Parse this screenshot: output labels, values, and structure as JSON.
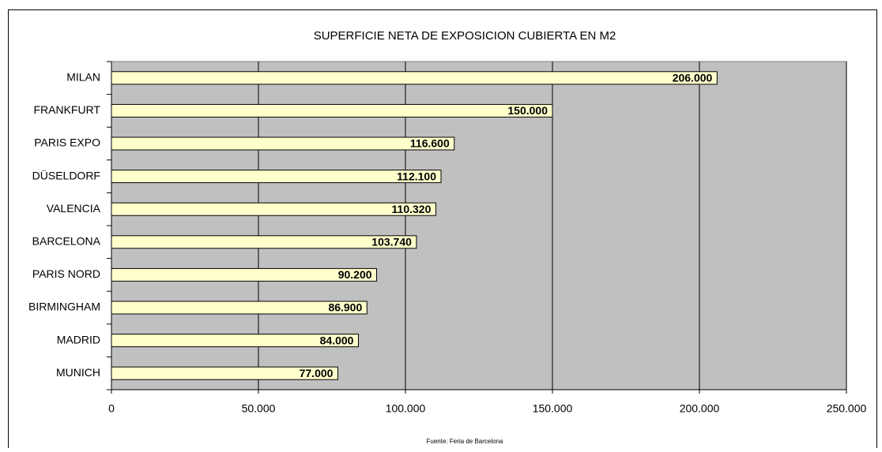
{
  "chart_data": {
    "type": "bar",
    "orientation": "horizontal",
    "title": "SUPERFICIE NETA DE EXPOSICION CUBIERTA EN M2",
    "note": "Fuente: Feria de Barcelona",
    "categories": [
      "MILAN",
      "FRANKFURT",
      "PARIS EXPO",
      "DÜSELDORF",
      "VALENCIA",
      "BARCELONA",
      "PARIS NORD",
      "BIRMINGHAM",
      "MADRID",
      "MUNICH"
    ],
    "values": [
      206000,
      150000,
      116600,
      112100,
      110320,
      103740,
      90200,
      86900,
      84000,
      77000
    ],
    "value_labels": [
      "206.000",
      "150.000",
      "116.600",
      "112.100",
      "110.320",
      "103.740",
      "90.200",
      "86.900",
      "84.000",
      "77.000"
    ],
    "color": "#ffffcc",
    "plot_background": "#c0c0c0",
    "xlim": [
      0,
      250000
    ],
    "xticks": [
      0,
      {
        "value": 50000,
        "label": "50.000"
      },
      {
        "value": 100000,
        "label": "100.000"
      },
      {
        "value": 150000,
        "label": "150.000"
      },
      {
        "value": 200000,
        "label": "200.000"
      },
      {
        "value": 250000,
        "label": "250.000"
      }
    ],
    "grid": true
  }
}
